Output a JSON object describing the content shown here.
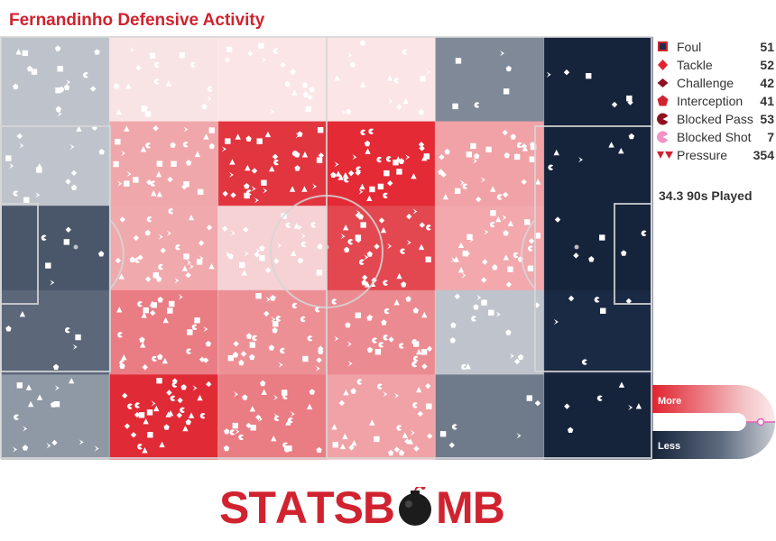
{
  "title": "Fernandinho Defensive Activity",
  "legend": [
    {
      "label": "Foul",
      "count": "51",
      "icon": "foul-square-icon"
    },
    {
      "label": "Tackle",
      "count": "52",
      "icon": "tackle-diamond-icon"
    },
    {
      "label": "Challenge",
      "count": "42",
      "icon": "challenge-diamond-icon"
    },
    {
      "label": "Interception",
      "count": "41",
      "icon": "interception-pentagon-icon"
    },
    {
      "label": "Blocked Pass",
      "count": "53",
      "icon": "blocked-pass-pacman-icon"
    },
    {
      "label": "Blocked Shot",
      "count": "7",
      "icon": "blocked-shot-pacman-icon"
    },
    {
      "label": "Pressure",
      "count": "354",
      "icon": "pressure-chevron-icon"
    }
  ],
  "played": "34.3 90s Played",
  "scale": {
    "more": "More",
    "less": "Less"
  },
  "logo": {
    "text": "STATSBOMB"
  },
  "colors": {
    "accent": "#d0232f",
    "heat_high": "#e32a35",
    "heat_low": "#f9e4e5",
    "cold_light": "#bfc4cc",
    "cold_dark": "#15233b"
  },
  "chart_data": {
    "type": "heatmap",
    "title": "Fernandinho Defensive Activity",
    "grid": {
      "columns": 6,
      "rows": 5
    },
    "direction_of_play": "left-to-right",
    "cells": [
      [
        "#bec3cb",
        "#f9e4e5",
        "#fbe5e6",
        "#fbe5e6",
        "#7f8998",
        "#15233b"
      ],
      [
        "#bfc4cc",
        "#f0a7ab",
        "#e13540",
        "#e32a35",
        "#f0a2a6",
        "#15233b"
      ],
      [
        "#4a576b",
        "#f0a9ad",
        "#f6d2d4",
        "#e34750",
        "#f2a8ac",
        "#15233b"
      ],
      [
        "#5c677a",
        "#ea7c83",
        "#ec9096",
        "#eb8a90",
        "#bfc4cc",
        "#1b2a44"
      ],
      [
        "#8f98a5",
        "#e02a35",
        "#ea7c83",
        "#f0a2a6",
        "#6f7a8b",
        "#15233b"
      ]
    ],
    "event_counts": {
      "Foul": 51,
      "Tackle": 52,
      "Challenge": 42,
      "Interception": 41,
      "Blocked Pass": 53,
      "Blocked Shot": 7,
      "Pressure": 354
    },
    "nineties_played": 34.3,
    "colorbar": {
      "high": "More",
      "low": "Less"
    }
  }
}
